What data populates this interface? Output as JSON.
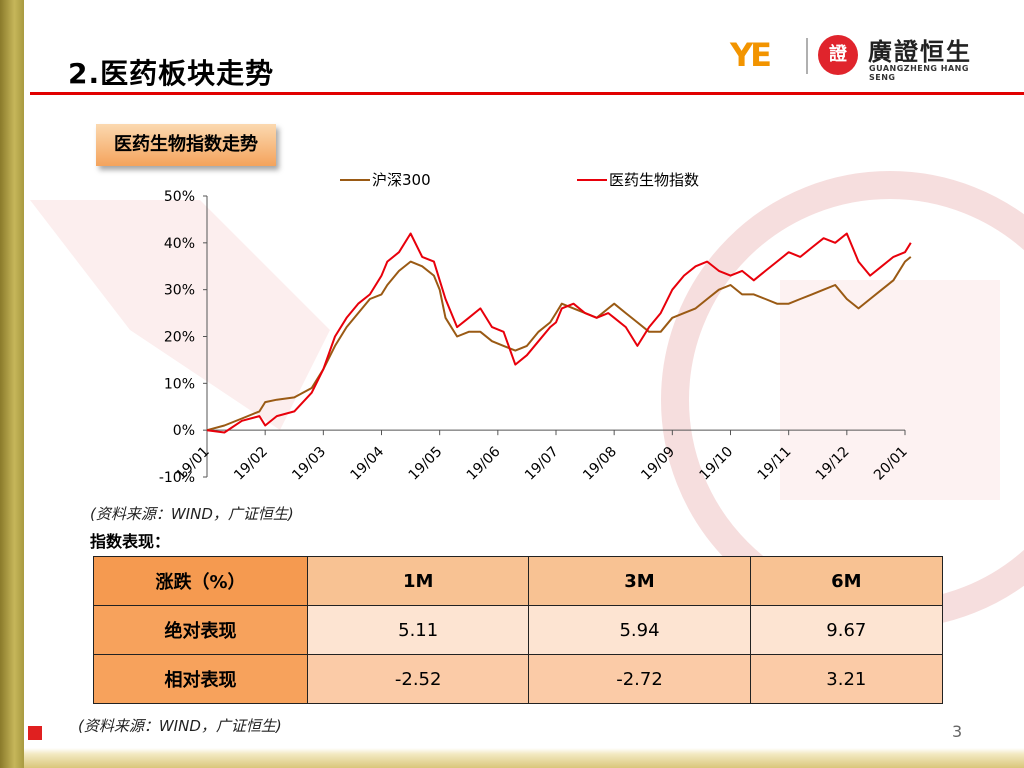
{
  "slide": {
    "title": "2.医药板块走势",
    "section_label": "医药生物指数走势",
    "page_number": "3"
  },
  "logo": {
    "mark": "YE",
    "seal": "證",
    "cn": "廣證恒生",
    "en": "GUANGZHENG HANG SENG"
  },
  "sources": {
    "chart_source": "(资料来源：WIND，广证恒生)",
    "table_source": "(资料来源：WIND，广证恒生)"
  },
  "perf": {
    "title": "指数表现：",
    "header": [
      "涨跌（%）",
      "1M",
      "3M",
      "6M"
    ],
    "rows": [
      {
        "label": "绝对表现",
        "values": [
          "5.11",
          "5.94",
          "9.67"
        ]
      },
      {
        "label": "相对表现",
        "values": [
          "-2.52",
          "-2.72",
          "3.21"
        ]
      }
    ]
  },
  "colors": {
    "hs300": "#9a5a14",
    "pharma": "#e8000b",
    "accent_red": "#e10000"
  },
  "chart_data": {
    "type": "line",
    "title": "",
    "xlabel": "",
    "ylabel": "",
    "ylim": [
      -10,
      50
    ],
    "yticks": [
      "50%",
      "40%",
      "30%",
      "20%",
      "10%",
      "0%",
      "-10%"
    ],
    "xticks": [
      "19/01",
      "19/02",
      "19/03",
      "19/04",
      "19/05",
      "19/06",
      "19/07",
      "19/08",
      "19/09",
      "19/10",
      "19/11",
      "19/12",
      "20/01"
    ],
    "legend_position": "top",
    "series": [
      {
        "name": "沪深300",
        "values": [
          [
            0,
            0
          ],
          [
            0.3,
            1
          ],
          [
            0.6,
            2.5
          ],
          [
            0.9,
            4
          ],
          [
            1.0,
            6
          ],
          [
            1.2,
            6.5
          ],
          [
            1.5,
            7
          ],
          [
            1.8,
            9
          ],
          [
            2.0,
            13
          ],
          [
            2.2,
            18
          ],
          [
            2.4,
            22
          ],
          [
            2.6,
            25
          ],
          [
            2.8,
            28
          ],
          [
            3.0,
            29
          ],
          [
            3.1,
            31
          ],
          [
            3.3,
            34
          ],
          [
            3.5,
            36
          ],
          [
            3.7,
            35
          ],
          [
            3.9,
            33
          ],
          [
            4.0,
            30
          ],
          [
            4.1,
            24
          ],
          [
            4.3,
            20
          ],
          [
            4.5,
            21
          ],
          [
            4.7,
            21
          ],
          [
            4.9,
            19
          ],
          [
            5.1,
            18
          ],
          [
            5.3,
            17
          ],
          [
            5.5,
            18
          ],
          [
            5.7,
            21
          ],
          [
            5.9,
            23
          ],
          [
            6.0,
            25
          ],
          [
            6.1,
            27
          ],
          [
            6.3,
            26
          ],
          [
            6.5,
            25
          ],
          [
            6.7,
            24
          ],
          [
            6.9,
            26
          ],
          [
            7.0,
            27
          ],
          [
            7.2,
            25
          ],
          [
            7.4,
            23
          ],
          [
            7.6,
            21
          ],
          [
            7.8,
            21
          ],
          [
            8.0,
            24
          ],
          [
            8.2,
            25
          ],
          [
            8.4,
            26
          ],
          [
            8.6,
            28
          ],
          [
            8.8,
            30
          ],
          [
            9.0,
            31
          ],
          [
            9.2,
            29
          ],
          [
            9.4,
            29
          ],
          [
            9.6,
            28
          ],
          [
            9.8,
            27
          ],
          [
            10.0,
            27
          ],
          [
            10.2,
            28
          ],
          [
            10.4,
            29
          ],
          [
            10.6,
            30
          ],
          [
            10.8,
            31
          ],
          [
            11.0,
            28
          ],
          [
            11.2,
            26
          ],
          [
            11.4,
            28
          ],
          [
            11.6,
            30
          ],
          [
            11.8,
            32
          ],
          [
            12.0,
            36
          ],
          [
            12.1,
            37
          ]
        ]
      },
      {
        "name": "医药生物指数",
        "values": [
          [
            0,
            0
          ],
          [
            0.3,
            -0.5
          ],
          [
            0.6,
            2
          ],
          [
            0.9,
            3
          ],
          [
            1.0,
            1
          ],
          [
            1.2,
            3
          ],
          [
            1.5,
            4
          ],
          [
            1.8,
            8
          ],
          [
            2.0,
            13
          ],
          [
            2.2,
            20
          ],
          [
            2.4,
            24
          ],
          [
            2.6,
            27
          ],
          [
            2.8,
            29
          ],
          [
            3.0,
            33
          ],
          [
            3.1,
            36
          ],
          [
            3.3,
            38
          ],
          [
            3.5,
            42
          ],
          [
            3.7,
            37
          ],
          [
            3.9,
            36
          ],
          [
            4.0,
            32
          ],
          [
            4.1,
            28
          ],
          [
            4.3,
            22
          ],
          [
            4.5,
            24
          ],
          [
            4.7,
            26
          ],
          [
            4.9,
            22
          ],
          [
            5.1,
            21
          ],
          [
            5.3,
            14
          ],
          [
            5.5,
            16
          ],
          [
            5.7,
            19
          ],
          [
            5.9,
            22
          ],
          [
            6.0,
            23
          ],
          [
            6.1,
            26
          ],
          [
            6.3,
            27
          ],
          [
            6.5,
            25
          ],
          [
            6.7,
            24
          ],
          [
            6.9,
            25
          ],
          [
            7.0,
            24
          ],
          [
            7.2,
            22
          ],
          [
            7.4,
            18
          ],
          [
            7.6,
            22
          ],
          [
            7.8,
            25
          ],
          [
            8.0,
            30
          ],
          [
            8.2,
            33
          ],
          [
            8.4,
            35
          ],
          [
            8.6,
            36
          ],
          [
            8.8,
            34
          ],
          [
            9.0,
            33
          ],
          [
            9.2,
            34
          ],
          [
            9.4,
            32
          ],
          [
            9.6,
            34
          ],
          [
            9.8,
            36
          ],
          [
            10.0,
            38
          ],
          [
            10.2,
            37
          ],
          [
            10.4,
            39
          ],
          [
            10.6,
            41
          ],
          [
            10.8,
            40
          ],
          [
            11.0,
            42
          ],
          [
            11.2,
            36
          ],
          [
            11.4,
            33
          ],
          [
            11.6,
            35
          ],
          [
            11.8,
            37
          ],
          [
            12.0,
            38
          ],
          [
            12.1,
            40
          ]
        ]
      }
    ]
  }
}
